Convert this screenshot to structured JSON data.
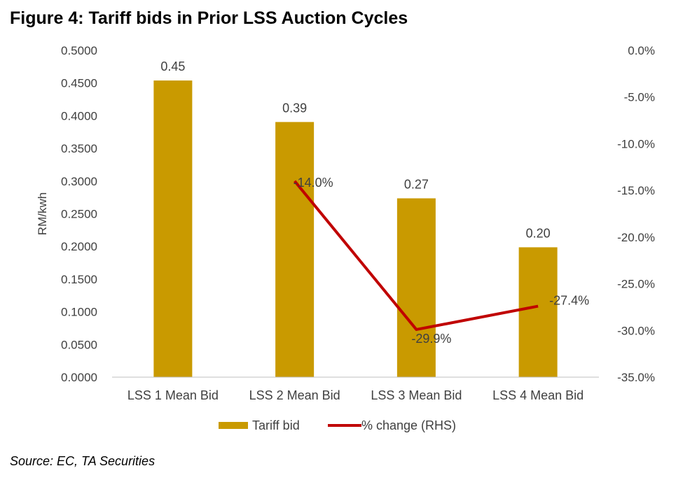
{
  "title": "Figure 4: Tariff bids in Prior LSS Auction Cycles",
  "source": "Source: EC, TA Securities",
  "chart_data": {
    "type": "bar",
    "categories": [
      "LSS 1 Mean Bid",
      "LSS 2 Mean Bid",
      "LSS 3 Mean Bid",
      "LSS 4 Mean Bid"
    ],
    "series": [
      {
        "name": "Tariff bid",
        "type": "bar",
        "axis": "left",
        "color": "#C99A00",
        "values": [
          0.4539,
          0.3904,
          0.2736,
          0.1987
        ],
        "labels": [
          "0.45",
          "0.39",
          "0.27",
          "0.20"
        ]
      },
      {
        "name": "% change (RHS)",
        "type": "line",
        "axis": "right",
        "color": "#C00000",
        "values": [
          null,
          -14.0,
          -29.9,
          -27.4
        ],
        "labels": [
          "",
          "-14.0%",
          "-29.9%",
          "-27.4%"
        ]
      }
    ],
    "ylabel": "RM/kwh",
    "ylim": [
      0,
      0.5
    ],
    "yticks": [
      "0.0000",
      "0.0500",
      "0.1000",
      "0.1500",
      "0.2000",
      "0.2500",
      "0.3000",
      "0.3500",
      "0.4000",
      "0.4500",
      "0.5000"
    ],
    "y2lim": [
      -35,
      0
    ],
    "y2ticks": [
      "0.0%",
      "-5.0%",
      "-10.0%",
      "-15.0%",
      "-20.0%",
      "-25.0%",
      "-30.0%",
      "-35.0%"
    ],
    "grid": false,
    "legend": "bottom"
  }
}
